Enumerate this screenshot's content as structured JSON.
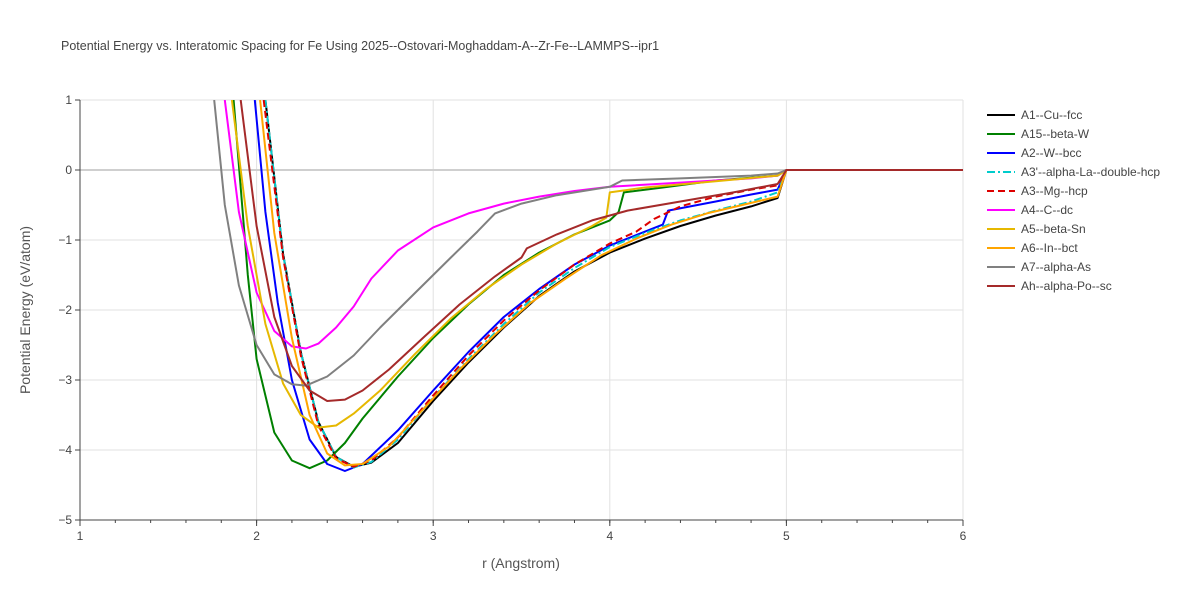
{
  "chart_data": {
    "type": "line",
    "title": "Potential Energy vs. Interatomic Spacing for Fe Using 2025--Ostovari-Moghaddam-A--Zr-Fe--LAMMPS--ipr1",
    "xlabel": "r (Angstrom)",
    "ylabel": "Potential Energy (eV/atom)",
    "xlim": [
      1,
      6
    ],
    "ylim": [
      -5,
      1
    ],
    "x_ticks": [
      "1",
      "2",
      "3",
      "4",
      "5",
      "6"
    ],
    "y_ticks": [
      "−5",
      "−4",
      "−3",
      "−2",
      "−1",
      "0",
      "1"
    ],
    "grid": true,
    "legend_position": "right",
    "series": [
      {
        "name": "A1--Cu--fcc",
        "color": "#000000",
        "dash": "solid",
        "points": [
          [
            2.05,
            1.0
          ],
          [
            2.15,
            -1.2
          ],
          [
            2.25,
            -2.6
          ],
          [
            2.35,
            -3.6
          ],
          [
            2.45,
            -4.1
          ],
          [
            2.55,
            -4.24
          ],
          [
            2.65,
            -4.18
          ],
          [
            2.8,
            -3.9
          ],
          [
            3.0,
            -3.3
          ],
          [
            3.2,
            -2.75
          ],
          [
            3.4,
            -2.25
          ],
          [
            3.6,
            -1.8
          ],
          [
            3.8,
            -1.45
          ],
          [
            4.0,
            -1.18
          ],
          [
            4.2,
            -0.98
          ],
          [
            4.4,
            -0.8
          ],
          [
            4.6,
            -0.65
          ],
          [
            4.8,
            -0.52
          ],
          [
            4.95,
            -0.4
          ],
          [
            5.0,
            0.0
          ],
          [
            6.0,
            0.0
          ]
        ]
      },
      {
        "name": "A15--beta-W",
        "color": "#008000",
        "dash": "solid",
        "points": [
          [
            1.87,
            1.0
          ],
          [
            1.95,
            -1.5
          ],
          [
            2.0,
            -2.7
          ],
          [
            2.1,
            -3.75
          ],
          [
            2.2,
            -4.15
          ],
          [
            2.3,
            -4.26
          ],
          [
            2.4,
            -4.15
          ],
          [
            2.5,
            -3.9
          ],
          [
            2.6,
            -3.55
          ],
          [
            2.8,
            -2.95
          ],
          [
            3.0,
            -2.4
          ],
          [
            3.2,
            -1.92
          ],
          [
            3.4,
            -1.5
          ],
          [
            3.6,
            -1.18
          ],
          [
            3.8,
            -0.92
          ],
          [
            4.0,
            -0.72
          ],
          [
            4.05,
            -0.6
          ],
          [
            4.08,
            -0.32
          ],
          [
            4.3,
            -0.25
          ],
          [
            4.6,
            -0.15
          ],
          [
            4.95,
            -0.08
          ],
          [
            5.0,
            0.0
          ],
          [
            6.0,
            0.0
          ]
        ]
      },
      {
        "name": "A2--W--bcc",
        "color": "#0000ff",
        "dash": "solid",
        "points": [
          [
            1.99,
            1.0
          ],
          [
            2.05,
            -0.6
          ],
          [
            2.12,
            -1.9
          ],
          [
            2.2,
            -3.0
          ],
          [
            2.3,
            -3.85
          ],
          [
            2.4,
            -4.2
          ],
          [
            2.5,
            -4.3
          ],
          [
            2.6,
            -4.2
          ],
          [
            2.8,
            -3.72
          ],
          [
            3.0,
            -3.15
          ],
          [
            3.2,
            -2.6
          ],
          [
            3.4,
            -2.1
          ],
          [
            3.6,
            -1.7
          ],
          [
            3.8,
            -1.35
          ],
          [
            4.0,
            -1.08
          ],
          [
            4.2,
            -0.88
          ],
          [
            4.3,
            -0.78
          ],
          [
            4.33,
            -0.58
          ],
          [
            4.6,
            -0.45
          ],
          [
            4.8,
            -0.35
          ],
          [
            4.95,
            -0.28
          ],
          [
            5.0,
            0.0
          ],
          [
            6.0,
            0.0
          ]
        ]
      },
      {
        "name": "A3'--alpha-La--double-hcp",
        "color": "#00cccc",
        "dash": "dashdot",
        "points": [
          [
            2.05,
            1.0
          ],
          [
            2.15,
            -1.2
          ],
          [
            2.25,
            -2.6
          ],
          [
            2.35,
            -3.6
          ],
          [
            2.45,
            -4.1
          ],
          [
            2.55,
            -4.25
          ],
          [
            2.65,
            -4.17
          ],
          [
            2.8,
            -3.85
          ],
          [
            3.0,
            -3.25
          ],
          [
            3.2,
            -2.7
          ],
          [
            3.4,
            -2.2
          ],
          [
            3.6,
            -1.75
          ],
          [
            3.8,
            -1.4
          ],
          [
            4.0,
            -1.1
          ],
          [
            4.2,
            -0.9
          ],
          [
            4.4,
            -0.72
          ],
          [
            4.6,
            -0.58
          ],
          [
            4.8,
            -0.45
          ],
          [
            4.95,
            -0.32
          ],
          [
            5.0,
            0.0
          ],
          [
            6.0,
            0.0
          ]
        ]
      },
      {
        "name": "A3--Mg--hcp",
        "color": "#dd0000",
        "dash": "dash",
        "points": [
          [
            2.04,
            1.0
          ],
          [
            2.15,
            -1.25
          ],
          [
            2.25,
            -2.65
          ],
          [
            2.35,
            -3.65
          ],
          [
            2.45,
            -4.12
          ],
          [
            2.55,
            -4.24
          ],
          [
            2.65,
            -4.15
          ],
          [
            2.8,
            -3.82
          ],
          [
            3.0,
            -3.22
          ],
          [
            3.2,
            -2.65
          ],
          [
            3.4,
            -2.15
          ],
          [
            3.6,
            -1.72
          ],
          [
            3.8,
            -1.35
          ],
          [
            4.0,
            -1.05
          ],
          [
            4.15,
            -0.88
          ],
          [
            4.25,
            -0.7
          ],
          [
            4.4,
            -0.52
          ],
          [
            4.6,
            -0.38
          ],
          [
            4.8,
            -0.28
          ],
          [
            4.95,
            -0.22
          ],
          [
            5.0,
            0.0
          ],
          [
            6.0,
            0.0
          ]
        ]
      },
      {
        "name": "A4--C--dc",
        "color": "#ff00ff",
        "dash": "solid",
        "points": [
          [
            1.82,
            1.0
          ],
          [
            1.9,
            -0.6
          ],
          [
            2.0,
            -1.75
          ],
          [
            2.1,
            -2.3
          ],
          [
            2.2,
            -2.52
          ],
          [
            2.28,
            -2.55
          ],
          [
            2.35,
            -2.48
          ],
          [
            2.45,
            -2.25
          ],
          [
            2.55,
            -1.95
          ],
          [
            2.65,
            -1.55
          ],
          [
            2.8,
            -1.15
          ],
          [
            3.0,
            -0.82
          ],
          [
            3.2,
            -0.62
          ],
          [
            3.4,
            -0.48
          ],
          [
            3.6,
            -0.38
          ],
          [
            3.8,
            -0.3
          ],
          [
            4.0,
            -0.24
          ],
          [
            4.4,
            -0.18
          ],
          [
            4.8,
            -0.12
          ],
          [
            4.95,
            -0.08
          ],
          [
            5.0,
            0.0
          ],
          [
            6.0,
            0.0
          ]
        ]
      },
      {
        "name": "A5--beta-Sn",
        "color": "#e6b800",
        "dash": "solid",
        "points": [
          [
            1.86,
            1.0
          ],
          [
            1.95,
            -0.8
          ],
          [
            2.05,
            -2.2
          ],
          [
            2.15,
            -3.05
          ],
          [
            2.25,
            -3.5
          ],
          [
            2.35,
            -3.68
          ],
          [
            2.45,
            -3.65
          ],
          [
            2.55,
            -3.48
          ],
          [
            2.7,
            -3.15
          ],
          [
            2.9,
            -2.62
          ],
          [
            3.1,
            -2.12
          ],
          [
            3.3,
            -1.7
          ],
          [
            3.5,
            -1.35
          ],
          [
            3.7,
            -1.05
          ],
          [
            3.9,
            -0.8
          ],
          [
            3.98,
            -0.68
          ],
          [
            4.0,
            -0.32
          ],
          [
            4.2,
            -0.25
          ],
          [
            4.6,
            -0.16
          ],
          [
            4.95,
            -0.08
          ],
          [
            5.0,
            0.0
          ],
          [
            6.0,
            0.0
          ]
        ]
      },
      {
        "name": "A6--In--bct",
        "color": "#ffa500",
        "dash": "solid",
        "points": [
          [
            2.02,
            1.0
          ],
          [
            2.1,
            -0.9
          ],
          [
            2.2,
            -2.4
          ],
          [
            2.3,
            -3.5
          ],
          [
            2.4,
            -4.05
          ],
          [
            2.5,
            -4.22
          ],
          [
            2.6,
            -4.2
          ],
          [
            2.75,
            -3.95
          ],
          [
            2.95,
            -3.4
          ],
          [
            3.15,
            -2.85
          ],
          [
            3.35,
            -2.35
          ],
          [
            3.55,
            -1.9
          ],
          [
            3.75,
            -1.55
          ],
          [
            3.95,
            -1.22
          ],
          [
            4.15,
            -0.98
          ],
          [
            4.35,
            -0.78
          ],
          [
            4.55,
            -0.62
          ],
          [
            4.75,
            -0.5
          ],
          [
            4.95,
            -0.38
          ],
          [
            5.0,
            0.0
          ],
          [
            6.0,
            0.0
          ]
        ]
      },
      {
        "name": "A7--alpha-As",
        "color": "#808080",
        "dash": "solid",
        "points": [
          [
            1.76,
            1.0
          ],
          [
            1.82,
            -0.5
          ],
          [
            1.9,
            -1.65
          ],
          [
            2.0,
            -2.5
          ],
          [
            2.1,
            -2.92
          ],
          [
            2.2,
            -3.06
          ],
          [
            2.28,
            -3.08
          ],
          [
            2.4,
            -2.95
          ],
          [
            2.55,
            -2.65
          ],
          [
            2.7,
            -2.25
          ],
          [
            2.9,
            -1.75
          ],
          [
            3.1,
            -1.25
          ],
          [
            3.25,
            -0.88
          ],
          [
            3.35,
            -0.62
          ],
          [
            3.5,
            -0.48
          ],
          [
            3.7,
            -0.36
          ],
          [
            4.0,
            -0.24
          ],
          [
            4.07,
            -0.15
          ],
          [
            4.4,
            -0.12
          ],
          [
            4.8,
            -0.08
          ],
          [
            4.95,
            -0.05
          ],
          [
            5.0,
            0.0
          ],
          [
            6.0,
            0.0
          ]
        ]
      },
      {
        "name": "Ah--alpha-Po--sc",
        "color": "#a52a2a",
        "dash": "solid",
        "points": [
          [
            1.91,
            1.0
          ],
          [
            2.0,
            -0.8
          ],
          [
            2.1,
            -2.1
          ],
          [
            2.2,
            -2.8
          ],
          [
            2.3,
            -3.15
          ],
          [
            2.4,
            -3.3
          ],
          [
            2.5,
            -3.28
          ],
          [
            2.6,
            -3.15
          ],
          [
            2.75,
            -2.85
          ],
          [
            2.95,
            -2.38
          ],
          [
            3.15,
            -1.92
          ],
          [
            3.35,
            -1.52
          ],
          [
            3.5,
            -1.25
          ],
          [
            3.53,
            -1.12
          ],
          [
            3.7,
            -0.92
          ],
          [
            3.9,
            -0.72
          ],
          [
            4.1,
            -0.58
          ],
          [
            4.4,
            -0.45
          ],
          [
            4.7,
            -0.32
          ],
          [
            4.95,
            -0.2
          ],
          [
            5.0,
            0.0
          ],
          [
            6.0,
            0.0
          ]
        ]
      }
    ]
  }
}
